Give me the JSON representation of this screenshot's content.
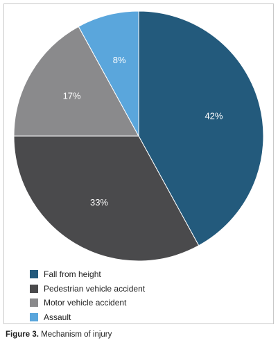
{
  "chart_data": {
    "type": "pie",
    "categories": [
      "Fall from height",
      "Pedestrian vehicle accident",
      "Motor vehicle accident",
      "Assault"
    ],
    "values": [
      42,
      33,
      17,
      8
    ],
    "data_labels": [
      "42%",
      "33%",
      "17%",
      "8%"
    ],
    "colors": [
      "#235a7c",
      "#4a4a4c",
      "#8a8a8c",
      "#5aa6dc"
    ],
    "start": "12 o'clock, clockwise",
    "legend_position": "bottom-left"
  },
  "caption": {
    "label": "Figure 3.",
    "text": " Mechanism of injury"
  }
}
